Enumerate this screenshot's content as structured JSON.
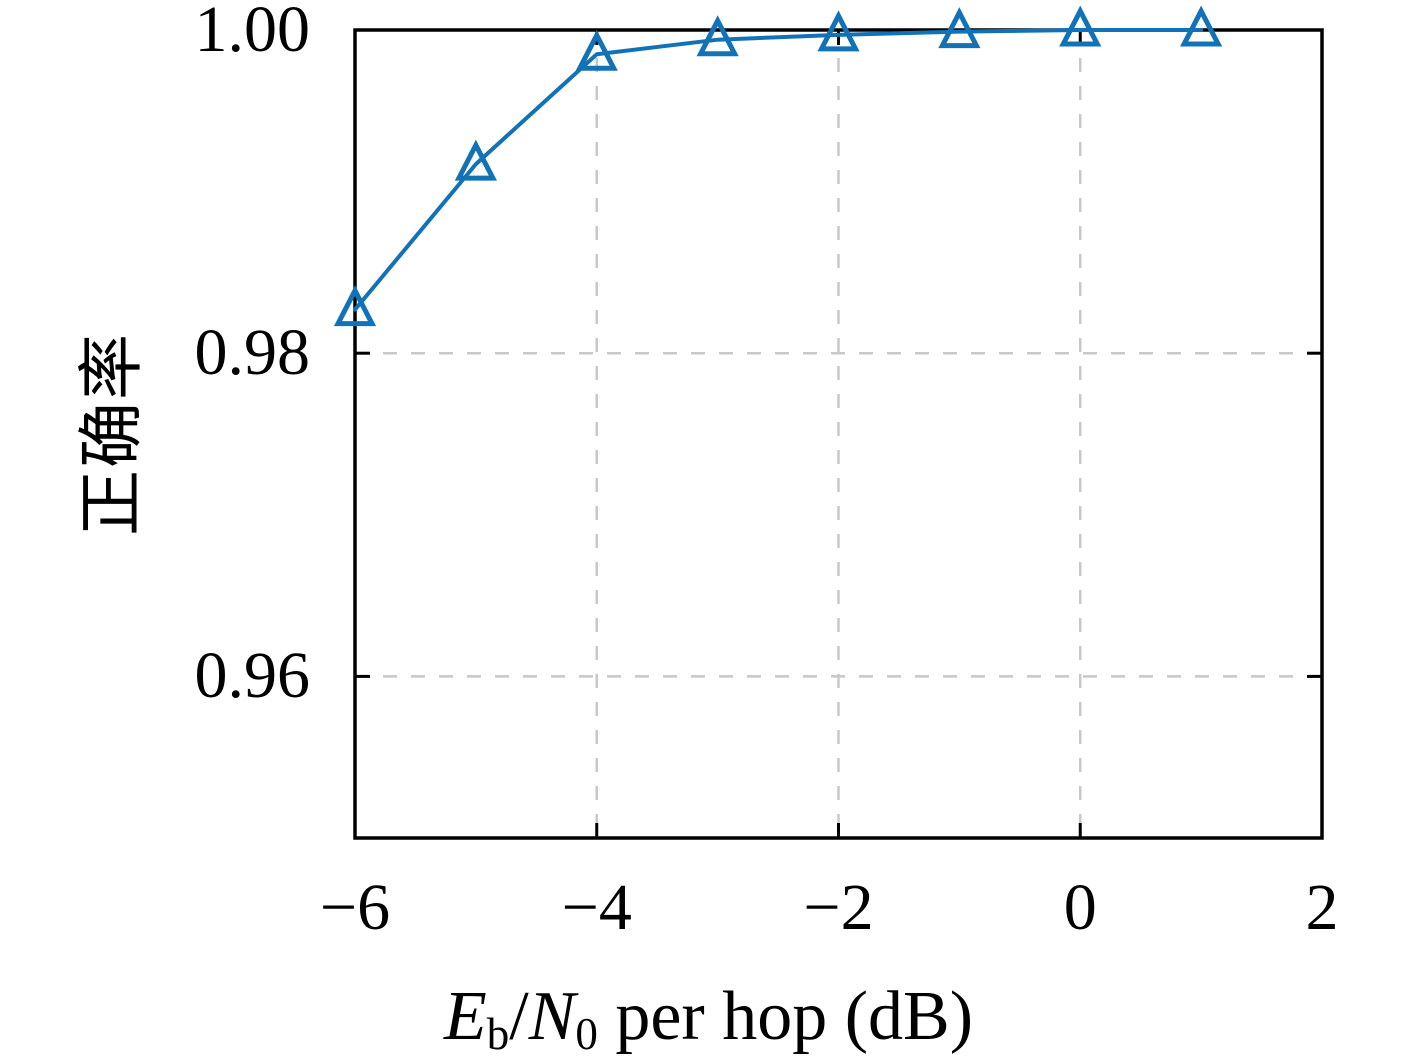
{
  "chart_data": {
    "type": "line",
    "title": "",
    "xlabel": "E_b/N_0 per hop (dB)",
    "xlabel_parts": {
      "var1": "E",
      "var1_sub": "b",
      "slash": "/",
      "var2": "N",
      "var2_sub": "0",
      "rest": " per hop (dB)"
    },
    "ylabel": "正确率",
    "xlim": [
      -6,
      2
    ],
    "ylim": [
      0.95,
      1.0
    ],
    "xticks": [
      {
        "value": -6,
        "label": "−6"
      },
      {
        "value": -4,
        "label": "−4"
      },
      {
        "value": -2,
        "label": "−2"
      },
      {
        "value": 0,
        "label": "0"
      },
      {
        "value": 2,
        "label": "2"
      }
    ],
    "yticks": [
      {
        "value": 0.96,
        "label": "0.96"
      },
      {
        "value": 0.98,
        "label": "0.98"
      },
      {
        "value": 1.0,
        "label": "1.00"
      }
    ],
    "grid": {
      "x_values": [
        -4,
        -2,
        0
      ],
      "y_values": [
        0.96,
        0.98
      ],
      "style": "dashed",
      "color": "#c8c8c8"
    },
    "series": [
      {
        "name": "accuracy-curve",
        "marker": "triangle-up-hollow",
        "x": [
          -6,
          -5,
          -4,
          -3,
          -2,
          -1,
          0,
          1
        ],
        "y": [
          0.9827,
          0.9917,
          0.9985,
          0.9994,
          0.9997,
          0.9999,
          1.0,
          1.0
        ]
      }
    ],
    "colors": {
      "line": "#1272b8",
      "axis": "#000000",
      "grid": "#c8c8c8"
    },
    "legend": null
  }
}
